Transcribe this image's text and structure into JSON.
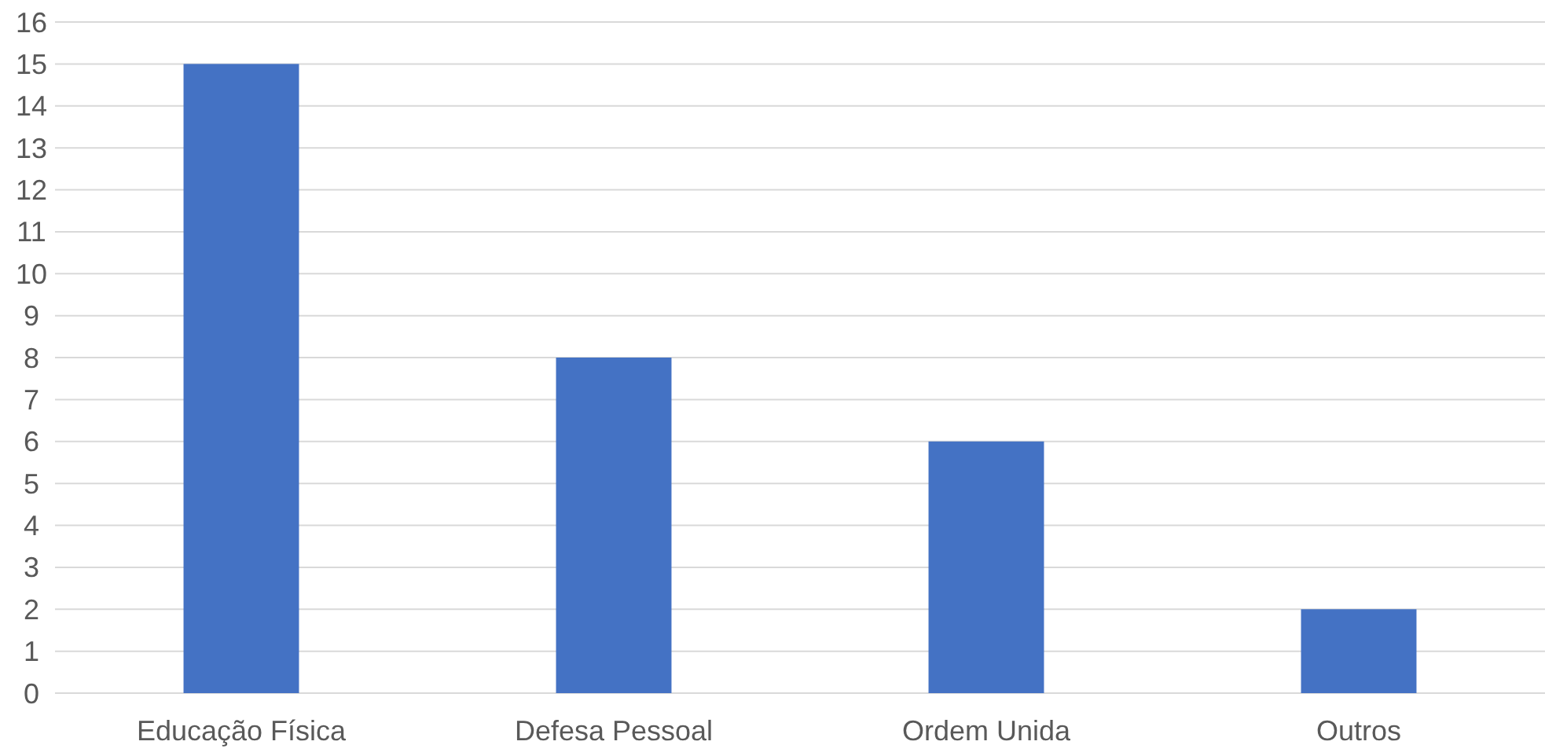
{
  "chart_data": {
    "type": "bar",
    "categories": [
      "Educação Física",
      "Defesa Pessoal",
      "Ordem Unida",
      "Outros"
    ],
    "values": [
      15,
      8,
      6,
      2
    ],
    "color": "#4472c4",
    "ylim": [
      0,
      16
    ],
    "yticks": [
      0,
      1,
      2,
      3,
      4,
      5,
      6,
      7,
      8,
      9,
      10,
      11,
      12,
      13,
      14,
      15,
      16
    ],
    "grid": "y"
  }
}
